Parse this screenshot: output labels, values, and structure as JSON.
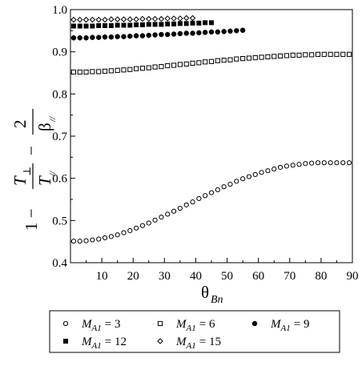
{
  "chart_data": {
    "type": "scatter",
    "title": "",
    "xlabel": "θ_Bn",
    "ylabel": "1 − T⊥/T∥ − 2/β∥",
    "xlim": [
      0,
      90
    ],
    "ylim": [
      0.4,
      1.0
    ],
    "x_ticks": [
      10,
      20,
      30,
      40,
      50,
      60,
      70,
      80,
      90
    ],
    "y_ticks": [
      0.4,
      0.5,
      0.6,
      0.7,
      0.8,
      0.9,
      1.0
    ],
    "x_tick_labels": [
      "10",
      "20",
      "30",
      "40",
      "50",
      "60",
      "70",
      "80",
      "90"
    ],
    "y_tick_labels": [
      "0.4",
      "0.5",
      "0.6",
      "0.7",
      "0.8",
      "0.9",
      "1.0"
    ],
    "grid": false,
    "legend_position": "bottom",
    "series": [
      {
        "name": "M_A1 = 3",
        "marker": "open-circle",
        "color": "#000000",
        "x": [
          1.0,
          3.0,
          5.0,
          7.0,
          9.0,
          11.0,
          13.0,
          15.0,
          17.0,
          19.0,
          21.0,
          23.0,
          25.0,
          27.0,
          29.0,
          31.0,
          33.0,
          35.0,
          37.0,
          39.0,
          41.0,
          43.0,
          45.0,
          47.0,
          49.0,
          51.0,
          53.0,
          55.0,
          57.0,
          59.0,
          61.0,
          63.0,
          65.0,
          67.0,
          69.0,
          71.0,
          73.0,
          75.0,
          77.0,
          79.0,
          81.0,
          83.0,
          85.0,
          87.0,
          89.0
        ],
        "y": [
          0.451,
          0.451,
          0.452,
          0.454,
          0.456,
          0.459,
          0.462,
          0.466,
          0.471,
          0.476,
          0.482,
          0.488,
          0.494,
          0.501,
          0.508,
          0.515,
          0.522,
          0.529,
          0.537,
          0.544,
          0.552,
          0.559,
          0.566,
          0.573,
          0.58,
          0.586,
          0.593,
          0.599,
          0.604,
          0.609,
          0.614,
          0.618,
          0.622,
          0.626,
          0.629,
          0.631,
          0.633,
          0.635,
          0.636,
          0.637,
          0.637,
          0.637,
          0.637,
          0.637,
          0.637
        ]
      },
      {
        "name": "M_A1 = 6",
        "marker": "open-square",
        "color": "#000000",
        "x": [
          1.0,
          3.0,
          5.0,
          7.0,
          9.0,
          11.0,
          13.0,
          15.0,
          17.0,
          19.0,
          21.0,
          23.0,
          25.0,
          27.0,
          29.0,
          31.0,
          33.0,
          35.0,
          37.0,
          39.0,
          41.0,
          43.0,
          45.0,
          47.0,
          49.0,
          51.0,
          53.0,
          55.0,
          57.0,
          59.0,
          61.0,
          63.0,
          65.0,
          67.0,
          69.0,
          71.0,
          73.0,
          75.0,
          77.0,
          79.0,
          81.0,
          83.0,
          85.0,
          87.0,
          89.0
        ],
        "y": [
          0.852,
          0.852,
          0.852,
          0.853,
          0.853,
          0.854,
          0.855,
          0.856,
          0.857,
          0.858,
          0.86,
          0.861,
          0.862,
          0.864,
          0.865,
          0.867,
          0.868,
          0.87,
          0.871,
          0.873,
          0.874,
          0.876,
          0.877,
          0.879,
          0.88,
          0.881,
          0.883,
          0.884,
          0.885,
          0.886,
          0.887,
          0.888,
          0.889,
          0.89,
          0.891,
          0.892,
          0.892,
          0.893,
          0.893,
          0.894,
          0.894,
          0.894,
          0.894,
          0.894,
          0.894
        ]
      },
      {
        "name": "M_A1 = 9",
        "marker": "filled-circle",
        "color": "#000000",
        "x": [
          1.0,
          3.0,
          5.0,
          7.0,
          9.0,
          11.0,
          13.0,
          15.0,
          17.0,
          19.0,
          21.0,
          23.0,
          25.0,
          27.0,
          29.0,
          31.0,
          33.0,
          35.0,
          37.0,
          39.0,
          41.0,
          43.0,
          45.0,
          47.0,
          49.0,
          51.0,
          53.0,
          55.0
        ],
        "y": [
          0.933,
          0.933,
          0.933,
          0.934,
          0.934,
          0.935,
          0.935,
          0.936,
          0.936,
          0.937,
          0.938,
          0.938,
          0.939,
          0.94,
          0.941,
          0.941,
          0.942,
          0.943,
          0.944,
          0.944,
          0.945,
          0.946,
          0.947,
          0.947,
          0.948,
          0.949,
          0.95,
          0.951
        ]
      },
      {
        "name": "M_A1 = 12",
        "marker": "filled-square",
        "color": "#000000",
        "x": [
          1.0,
          3.0,
          5.0,
          7.0,
          9.0,
          11.0,
          13.0,
          15.0,
          17.0,
          19.0,
          21.0,
          23.0,
          25.0,
          27.0,
          29.0,
          31.0,
          33.0,
          35.0,
          37.0,
          39.0,
          41.0,
          43.0,
          45.0
        ],
        "y": [
          0.961,
          0.961,
          0.961,
          0.961,
          0.962,
          0.962,
          0.962,
          0.963,
          0.963,
          0.963,
          0.964,
          0.964,
          0.965,
          0.965,
          0.965,
          0.966,
          0.966,
          0.967,
          0.967,
          0.968,
          0.968,
          0.969,
          0.969
        ]
      },
      {
        "name": "M_A1 = 15",
        "marker": "open-diamond",
        "color": "#000000",
        "x": [
          1.0,
          3.0,
          5.0,
          7.0,
          9.0,
          11.0,
          13.0,
          15.0,
          17.0,
          19.0,
          21.0,
          23.0,
          25.0,
          27.0,
          29.0,
          31.0,
          33.0,
          35.0,
          37.0,
          39.0
        ],
        "y": [
          0.976,
          0.976,
          0.976,
          0.976,
          0.976,
          0.976,
          0.977,
          0.977,
          0.977,
          0.977,
          0.977,
          0.978,
          0.978,
          0.978,
          0.978,
          0.979,
          0.979,
          0.979,
          0.98,
          0.98
        ]
      }
    ]
  },
  "ylabel_parts": {
    "one_minus": "1 −",
    "t_perp": "T",
    "perp_sub": "⊥",
    "t_par": "T",
    "par_sub": "//",
    "minus": "−",
    "two": "2",
    "beta": "β",
    "beta_sub": "//"
  },
  "xlabel_parts": {
    "theta": "θ",
    "sub": "Bn"
  },
  "legend": {
    "items": [
      {
        "prefix": "M",
        "sub": "A1",
        "rest": "= 3"
      },
      {
        "prefix": "M",
        "sub": "A1",
        "rest": "= 6"
      },
      {
        "prefix": "M",
        "sub": "A1",
        "rest": "= 9"
      },
      {
        "prefix": "M",
        "sub": "A1",
        "rest": "= 12"
      },
      {
        "prefix": "M",
        "sub": "A1",
        "rest": "= 15"
      }
    ]
  }
}
